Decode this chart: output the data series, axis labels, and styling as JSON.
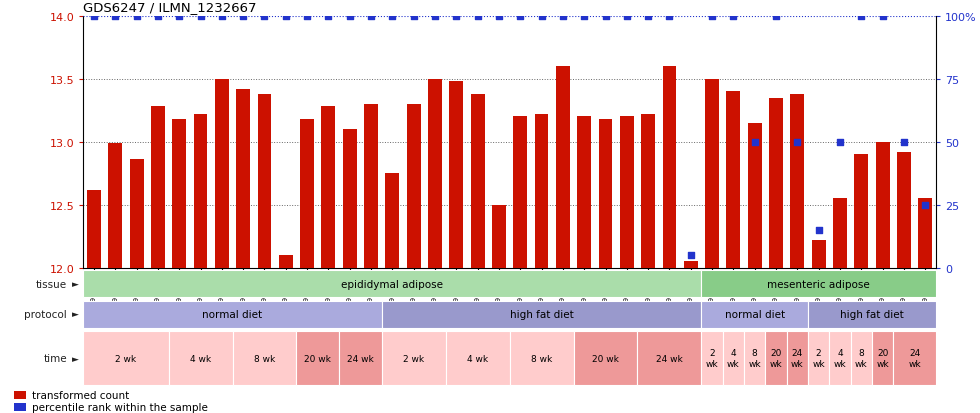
{
  "title": "GDS6247 / ILMN_1232667",
  "samples": [
    "GSM971546",
    "GSM971547",
    "GSM971548",
    "GSM971549",
    "GSM971550",
    "GSM971551",
    "GSM971552",
    "GSM971553",
    "GSM971554",
    "GSM971555",
    "GSM971556",
    "GSM971557",
    "GSM971558",
    "GSM971559",
    "GSM971560",
    "GSM971561",
    "GSM971562",
    "GSM971563",
    "GSM971564",
    "GSM971565",
    "GSM971566",
    "GSM971567",
    "GSM971568",
    "GSM971569",
    "GSM971570",
    "GSM971571",
    "GSM971572",
    "GSM971573",
    "GSM971574",
    "GSM971575",
    "GSM971576",
    "GSM971577",
    "GSM971578",
    "GSM971579",
    "GSM971580",
    "GSM971581",
    "GSM971582",
    "GSM971583",
    "GSM971584",
    "GSM971585"
  ],
  "bar_values": [
    12.62,
    12.99,
    12.86,
    13.28,
    13.18,
    13.22,
    13.5,
    13.42,
    13.38,
    12.1,
    13.18,
    13.28,
    13.1,
    13.3,
    12.75,
    13.3,
    13.5,
    13.48,
    13.38,
    12.5,
    13.2,
    13.22,
    13.6,
    13.2,
    13.18,
    13.2,
    13.22,
    13.6,
    12.05,
    13.5,
    13.4,
    13.15,
    13.35,
    13.38,
    12.22,
    12.55,
    12.9,
    13.0,
    12.92,
    12.55
  ],
  "percentile_values": [
    100,
    100,
    100,
    100,
    100,
    100,
    100,
    100,
    100,
    100,
    100,
    100,
    100,
    100,
    100,
    100,
    100,
    100,
    100,
    100,
    100,
    100,
    100,
    100,
    100,
    100,
    100,
    100,
    5,
    100,
    100,
    50,
    100,
    50,
    15,
    50,
    100,
    100,
    50,
    25
  ],
  "bar_color": "#CC1100",
  "dot_color": "#2233CC",
  "ylim_left": [
    12.0,
    14.0
  ],
  "ylim_right": [
    0,
    100
  ],
  "yticks_left": [
    12.0,
    12.5,
    13.0,
    13.5,
    14.0
  ],
  "yticks_right": [
    0,
    25,
    50,
    75,
    100
  ],
  "bg_color": "#ffffff",
  "tissue_groups": [
    {
      "label": "epididymal adipose",
      "start": 0,
      "end": 29,
      "color": "#aaddaa"
    },
    {
      "label": "mesenteric adipose",
      "start": 29,
      "end": 40,
      "color": "#88cc88"
    }
  ],
  "protocol_groups": [
    {
      "label": "normal diet",
      "start": 0,
      "end": 14,
      "color": "#aaaadd"
    },
    {
      "label": "high fat diet",
      "start": 14,
      "end": 29,
      "color": "#9999cc"
    },
    {
      "label": "normal diet",
      "start": 29,
      "end": 34,
      "color": "#aaaadd"
    },
    {
      "label": "high fat diet",
      "start": 34,
      "end": 40,
      "color": "#9999cc"
    }
  ],
  "time_groups": [
    {
      "label": "2 wk",
      "start": 0,
      "end": 4,
      "color": "#ffcccc"
    },
    {
      "label": "4 wk",
      "start": 4,
      "end": 7,
      "color": "#ffcccc"
    },
    {
      "label": "8 wk",
      "start": 7,
      "end": 10,
      "color": "#ffcccc"
    },
    {
      "label": "20 wk",
      "start": 10,
      "end": 12,
      "color": "#ee9999"
    },
    {
      "label": "24 wk",
      "start": 12,
      "end": 14,
      "color": "#ee9999"
    },
    {
      "label": "2 wk",
      "start": 14,
      "end": 17,
      "color": "#ffcccc"
    },
    {
      "label": "4 wk",
      "start": 17,
      "end": 20,
      "color": "#ffcccc"
    },
    {
      "label": "8 wk",
      "start": 20,
      "end": 23,
      "color": "#ffcccc"
    },
    {
      "label": "20 wk",
      "start": 23,
      "end": 26,
      "color": "#ee9999"
    },
    {
      "label": "24 wk",
      "start": 26,
      "end": 29,
      "color": "#ee9999"
    },
    {
      "label": "2\nwk",
      "start": 29,
      "end": 30,
      "color": "#ffcccc"
    },
    {
      "label": "4\nwk",
      "start": 30,
      "end": 31,
      "color": "#ffcccc"
    },
    {
      "label": "8\nwk",
      "start": 31,
      "end": 32,
      "color": "#ffcccc"
    },
    {
      "label": "20\nwk",
      "start": 32,
      "end": 33,
      "color": "#ee9999"
    },
    {
      "label": "24\nwk",
      "start": 33,
      "end": 34,
      "color": "#ee9999"
    },
    {
      "label": "2\nwk",
      "start": 34,
      "end": 35,
      "color": "#ffcccc"
    },
    {
      "label": "4\nwk",
      "start": 35,
      "end": 36,
      "color": "#ffcccc"
    },
    {
      "label": "8\nwk",
      "start": 36,
      "end": 37,
      "color": "#ffcccc"
    },
    {
      "label": "20\nwk",
      "start": 37,
      "end": 38,
      "color": "#ee9999"
    },
    {
      "label": "24\nwk",
      "start": 38,
      "end": 40,
      "color": "#ee9999"
    }
  ],
  "legend_items": [
    {
      "label": "transformed count",
      "color": "#CC1100"
    },
    {
      "label": "percentile rank within the sample",
      "color": "#2233CC"
    }
  ]
}
